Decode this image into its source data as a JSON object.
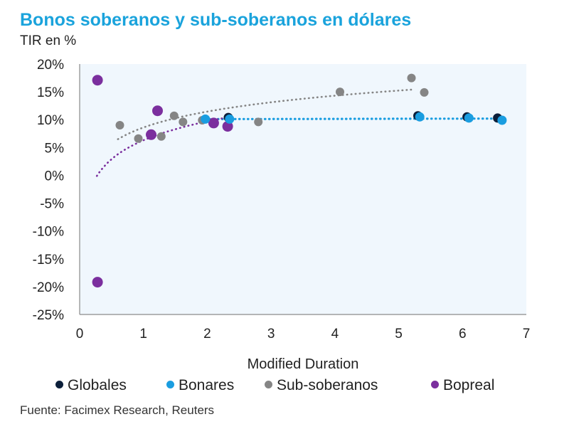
{
  "chart_data": {
    "type": "scatter",
    "title": "Bonos soberanos y sub-soberanos en dólares",
    "subtitle": "TIR en %",
    "xlabel": "Modified Duration",
    "ylabel": "TIR en %",
    "xlim": [
      0,
      7
    ],
    "ylim": [
      -25,
      20
    ],
    "x_ticks": [
      0,
      1,
      2,
      3,
      4,
      5,
      6,
      7
    ],
    "x_tick_labels": [
      "0",
      "1",
      "2",
      "3",
      "4",
      "5",
      "6",
      "7"
    ],
    "y_ticks": [
      20,
      15,
      10,
      5,
      0,
      -5,
      -10,
      -15,
      -20,
      -25
    ],
    "y_tick_labels": [
      "20%",
      "15%",
      "10%",
      "5%",
      "0%",
      "-5%",
      "-10%",
      "-15%",
      "-20%",
      "-25%"
    ],
    "series": [
      {
        "name": "Globales",
        "color": "#0b1f3a",
        "points": [
          {
            "x": 2.33,
            "y": 10.4
          },
          {
            "x": 5.3,
            "y": 10.7
          },
          {
            "x": 6.07,
            "y": 10.5
          },
          {
            "x": 6.55,
            "y": 10.3
          }
        ]
      },
      {
        "name": "Bonares",
        "color": "#1a9de0",
        "points": [
          {
            "x": 1.97,
            "y": 10.1
          },
          {
            "x": 2.35,
            "y": 10.1
          },
          {
            "x": 5.33,
            "y": 10.5
          },
          {
            "x": 6.1,
            "y": 10.3
          },
          {
            "x": 6.62,
            "y": 9.9
          }
        ]
      },
      {
        "name": "Sub-soberanos",
        "color": "#858585",
        "points": [
          {
            "x": 0.63,
            "y": 9.0
          },
          {
            "x": 0.92,
            "y": 6.6
          },
          {
            "x": 1.28,
            "y": 7.0
          },
          {
            "x": 1.48,
            "y": 10.7
          },
          {
            "x": 1.62,
            "y": 9.6
          },
          {
            "x": 1.92,
            "y": 9.9
          },
          {
            "x": 2.8,
            "y": 9.6
          },
          {
            "x": 4.08,
            "y": 15.0
          },
          {
            "x": 5.2,
            "y": 17.5
          },
          {
            "x": 5.4,
            "y": 14.9
          }
        ]
      },
      {
        "name": "Bopreal",
        "color": "#7b2f9e",
        "points": [
          {
            "x": 0.28,
            "y": 17.1
          },
          {
            "x": 0.28,
            "y": -19.2
          },
          {
            "x": 1.12,
            "y": 7.3
          },
          {
            "x": 1.22,
            "y": 11.6
          },
          {
            "x": 2.1,
            "y": 9.4
          },
          {
            "x": 2.32,
            "y": 8.8
          }
        ]
      }
    ],
    "trendlines": [
      {
        "series": "Sub-soberanos",
        "kind": "logarithmic",
        "color": "#858585",
        "x_range": [
          0.6,
          5.2
        ],
        "a": 8.6,
        "b": 4.12
      },
      {
        "series": "Bonares",
        "kind": "linear",
        "color": "#1a9de0",
        "x_range": [
          1.9,
          6.6
        ],
        "y_start": 10.1,
        "y_end": 10.2
      },
      {
        "series": "Bopreal",
        "kind": "logarithmic",
        "color": "#7b2f9e",
        "x_range": [
          0.27,
          2.35
        ],
        "a": 6.3,
        "b": 4.9
      }
    ],
    "legend_position": "bottom",
    "grid": false,
    "source": "Fuente: Facimex Research, Reuters"
  }
}
